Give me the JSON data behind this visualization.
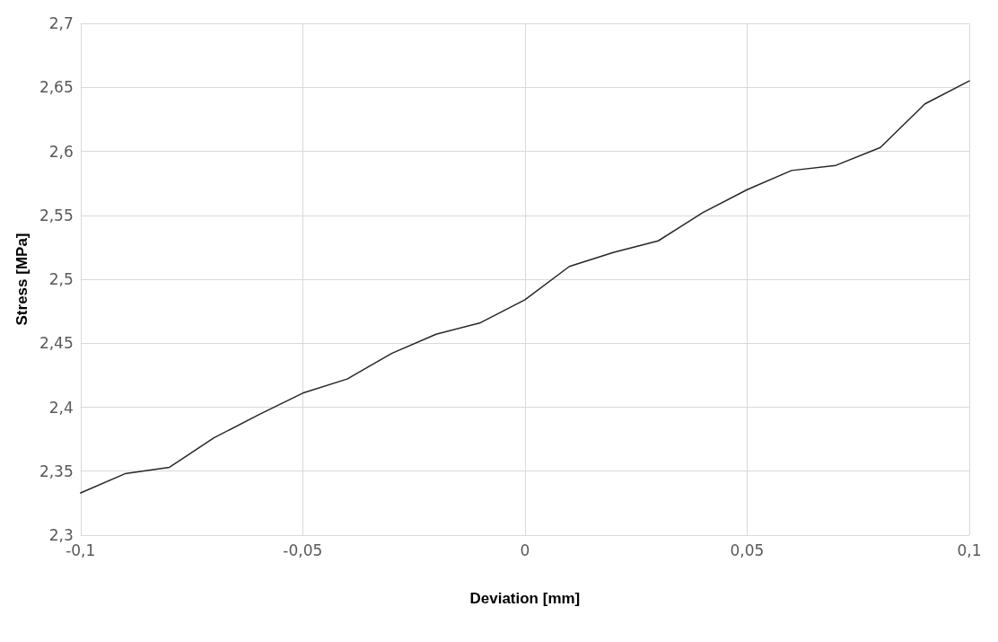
{
  "chart_data": {
    "type": "line",
    "xlabel": "Deviation [mm]",
    "ylabel": "Stress [MPa]",
    "x": [
      -0.1,
      -0.09,
      -0.08,
      -0.07,
      -0.06,
      -0.05,
      -0.04,
      -0.03,
      -0.02,
      -0.01,
      0,
      0.01,
      0.02,
      0.03,
      0.04,
      0.05,
      0.06,
      0.07,
      0.08,
      0.09,
      0.1
    ],
    "series": [
      {
        "color": "#262626",
        "values": [
          2.333,
          2.348,
          2.353,
          2.376,
          2.394,
          2.411,
          2.422,
          2.442,
          2.457,
          2.466,
          2.484,
          2.51,
          2.521,
          2.53,
          2.552,
          2.57,
          2.585,
          2.589,
          2.603,
          2.637,
          2.655
        ]
      }
    ],
    "xlim": [
      -0.1,
      0.1
    ],
    "xticks": [
      {
        "value": -0.1,
        "label": "-0,1"
      },
      {
        "value": -0.05,
        "label": "-0,05"
      },
      {
        "value": 0,
        "label": "0"
      },
      {
        "value": 0.05,
        "label": "0,05"
      },
      {
        "value": 0.1,
        "label": "0,1"
      }
    ],
    "ylim": [
      2.3,
      2.7
    ],
    "yticks": [
      {
        "value": 2.3,
        "label": "2,3"
      },
      {
        "value": 2.35,
        "label": "2,35"
      },
      {
        "value": 2.4,
        "label": "2,4"
      },
      {
        "value": 2.45,
        "label": "2,45"
      },
      {
        "value": 2.5,
        "label": "2,5"
      },
      {
        "value": 2.55,
        "label": "2,55"
      },
      {
        "value": 2.6,
        "label": "2,6"
      },
      {
        "value": 2.65,
        "label": "2,65"
      },
      {
        "value": 2.7,
        "label": "2,7"
      }
    ],
    "grid": true,
    "marker": "none",
    "line_style": "solid"
  }
}
